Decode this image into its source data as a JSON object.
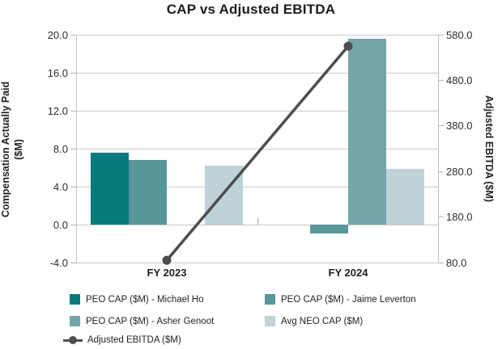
{
  "title": "CAP vs Adjusted EBITDA",
  "chart_data": {
    "type": "combo: grouped bar + line (dual axis)",
    "categories": [
      "FY 2023",
      "FY 2024"
    ],
    "bar_series": [
      {
        "name": "PEO CAP ($M) - Michael Ho",
        "color": "#077a7d",
        "values": [
          7.6,
          null
        ]
      },
      {
        "name": "PEO CAP ($M) - Jaime Leverton",
        "color": "#58969a",
        "values": [
          6.8,
          -0.9
        ]
      },
      {
        "name": "PEO CAP ($M) - Asher Genoot",
        "color": "#74a5a9",
        "values": [
          null,
          19.6
        ]
      },
      {
        "name": "Avg NEO CAP ($M)",
        "color": "#bed2d7",
        "values": [
          6.2,
          5.9
        ]
      }
    ],
    "line_series": {
      "name": "Adjusted EBITDA ($M)",
      "color": "#4d4d4d",
      "axis": "right",
      "values": [
        85,
        555
      ]
    },
    "left_axis": {
      "label_line1": "Compensation Actually Paid",
      "label_line2": "($M)",
      "min": -4,
      "max": 20,
      "tick_labels": [
        "20.0",
        "16.0",
        "12.0",
        "8.0",
        "4.0",
        "0.0",
        "-4.0"
      ]
    },
    "right_axis": {
      "label": "Adjusted EBITDA ($M)",
      "min": 80,
      "max": 580,
      "tick_labels": [
        "580.0",
        "480.0",
        "380.0",
        "280.0",
        "180.0",
        "80.0"
      ]
    },
    "grid": true,
    "legend_position": "bottom"
  }
}
